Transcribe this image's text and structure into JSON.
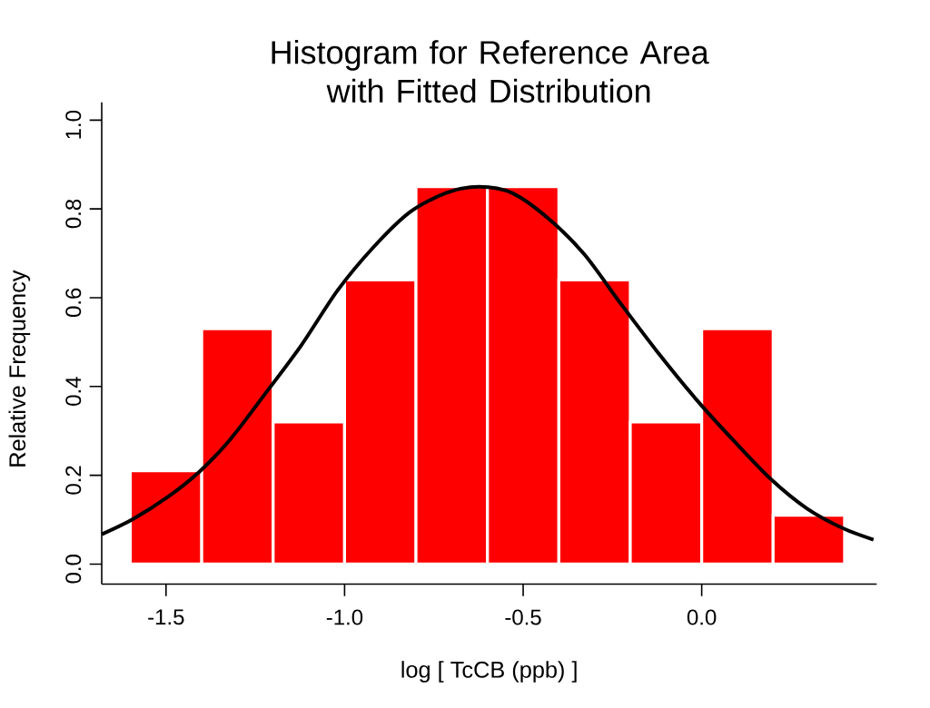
{
  "chart_data": {
    "type": "histogram",
    "title": "Histogram for Reference Area\nwith Fitted Distribution",
    "xlabel": "log [ TcCB (ppb) ]",
    "ylabel": "Relative Frequency",
    "bins": [
      -1.6,
      -1.4,
      -1.2,
      -1.0,
      -0.8,
      -0.6,
      -0.4,
      -0.2,
      0.0,
      0.2,
      0.4
    ],
    "values": [
      0.21,
      0.53,
      0.32,
      0.64,
      0.85,
      0.85,
      0.64,
      0.32,
      0.53,
      0.11
    ],
    "color": "#ff0000",
    "series": [
      {
        "type": "line",
        "color": "#000000",
        "x": [
          -1.68,
          -1.593,
          -1.492,
          -1.408,
          -1.323,
          -1.222,
          -1.121,
          -1.02,
          -0.919,
          -0.817,
          -0.716,
          -0.624,
          -0.531,
          -0.43,
          -0.329,
          -0.228,
          -0.126,
          -0.008,
          0.093,
          0.194,
          0.295,
          0.397,
          0.481
        ],
        "values": [
          0.067,
          0.101,
          0.153,
          0.207,
          0.278,
          0.384,
          0.493,
          0.616,
          0.714,
          0.793,
          0.836,
          0.85,
          0.836,
          0.779,
          0.698,
          0.588,
          0.48,
          0.364,
          0.275,
          0.191,
          0.125,
          0.08,
          0.055
        ]
      }
    ],
    "xlim": [
      -1.68,
      0.49
    ],
    "ylim": [
      -0.045,
      1.04
    ],
    "xticks": [
      {
        "value": -1.5,
        "label": "-1.5"
      },
      {
        "value": -1.0,
        "label": "-1.0"
      },
      {
        "value": -0.5,
        "label": "-0.5"
      },
      {
        "value": 0.0,
        "label": "0.0"
      }
    ],
    "yticks": [
      {
        "value": 0.0,
        "label": "0.0"
      },
      {
        "value": 0.2,
        "label": "0.2"
      },
      {
        "value": 0.4,
        "label": "0.4"
      },
      {
        "value": 0.6,
        "label": "0.6"
      },
      {
        "value": 0.8,
        "label": "0.8"
      },
      {
        "value": 1.0,
        "label": "1.0"
      }
    ],
    "grid": false
  }
}
